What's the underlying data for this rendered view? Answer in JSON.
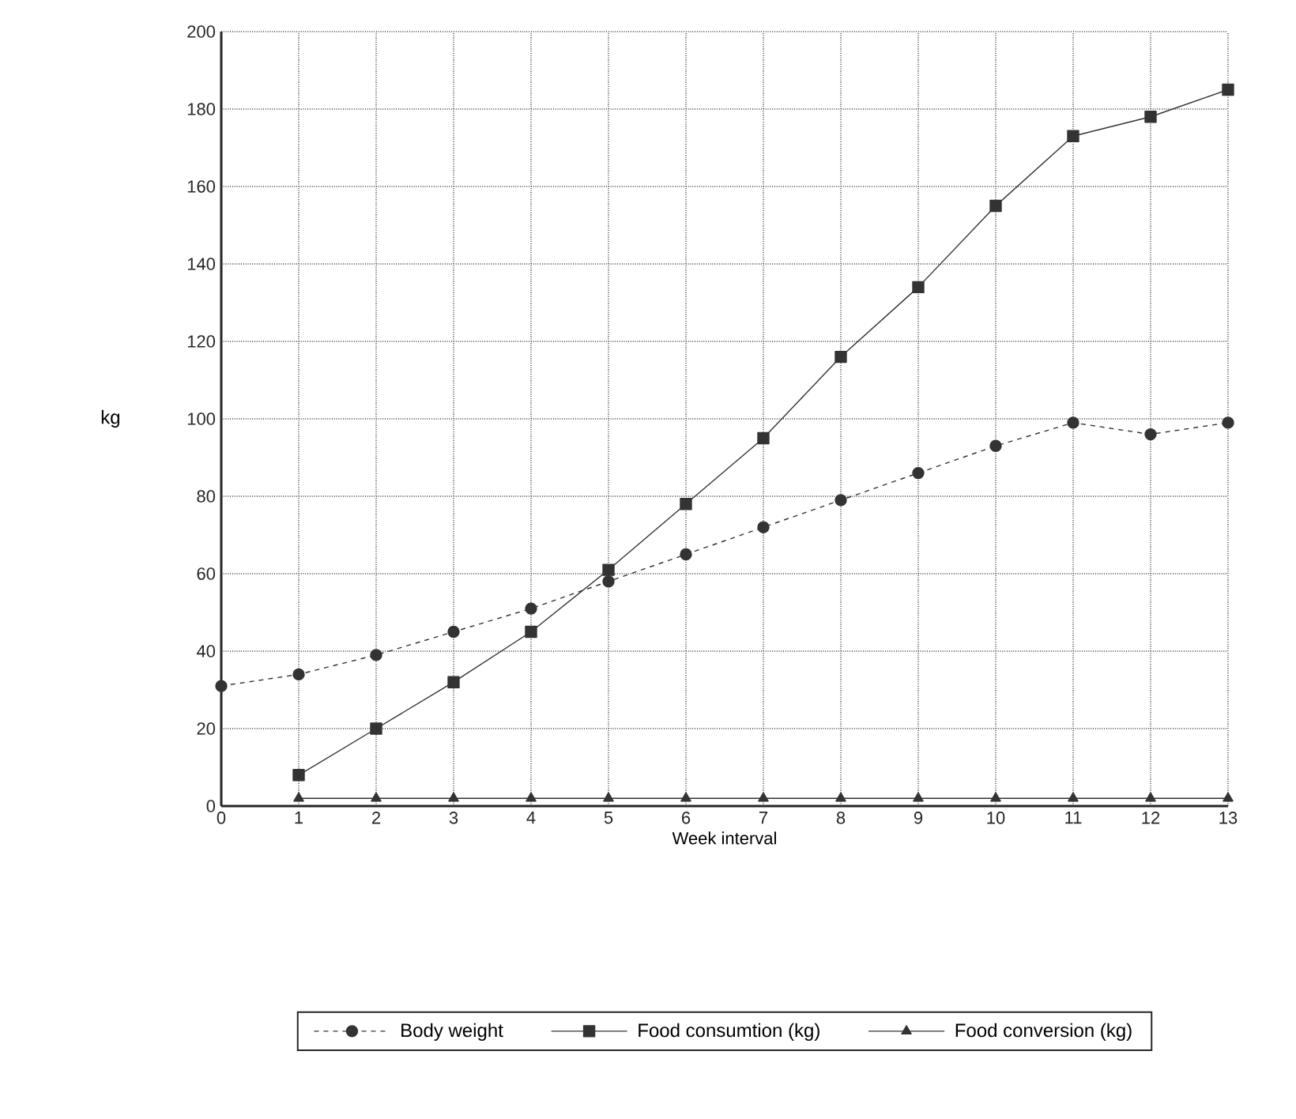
{
  "chart_data": {
    "type": "line",
    "xlabel": "Week interval",
    "ylabel": "kg",
    "xlim": [
      0,
      13
    ],
    "xticks": [
      0,
      1,
      2,
      3,
      4,
      5,
      6,
      7,
      8,
      9,
      10,
      11,
      12,
      13
    ],
    "ylim": [
      0,
      200
    ],
    "yticks": [
      0,
      20,
      40,
      60,
      80,
      100,
      120,
      140,
      160,
      180,
      200
    ],
    "grid": true,
    "legend": "bottom",
    "series": [
      {
        "name": "Body weight",
        "color": "#333333",
        "marker": "circle",
        "line_style": "dashed",
        "x": [
          0,
          1,
          2,
          3,
          4,
          5,
          6,
          7,
          8,
          9,
          10,
          11,
          12,
          13
        ],
        "values": [
          31,
          34,
          39,
          45,
          51,
          58,
          65,
          72,
          79,
          86,
          93,
          99,
          96,
          99
        ]
      },
      {
        "name": "Food consumtion (kg)",
        "color": "#333333",
        "marker": "square",
        "line_style": "solid",
        "x": [
          1,
          2,
          3,
          4,
          5,
          6,
          7,
          8,
          9,
          10,
          11,
          12,
          13
        ],
        "values": [
          8,
          20,
          32,
          45,
          61,
          78,
          95,
          116,
          134,
          155,
          173,
          178,
          185
        ]
      },
      {
        "name": "Food conversion (kg)",
        "color": "#333333",
        "marker": "triangle",
        "line_style": "solid",
        "x": [
          1,
          2,
          3,
          4,
          5,
          6,
          7,
          8,
          9,
          10,
          11,
          12,
          13
        ],
        "values": [
          2,
          2,
          2,
          2,
          2,
          2,
          2,
          2,
          2,
          2,
          2,
          2,
          2
        ]
      }
    ]
  }
}
